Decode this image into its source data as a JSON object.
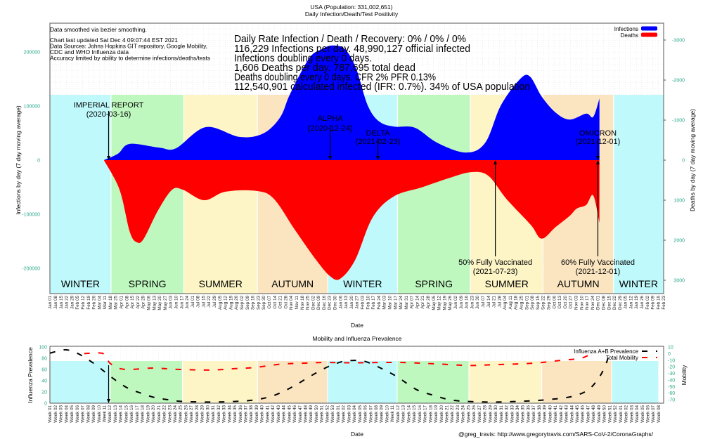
{
  "header": {
    "title": "USA (Population: 331,002,651)",
    "subtitle": "Daily Infection/Death/Test Positivity"
  },
  "notes": [
    "Data smoothed via bezier smoothing.",
    "Chart last updated Sat Dec  4 09:07:44 EST 2021",
    "Data Sources: Johns Hopkins GIT repository, Google Mobility,",
    "CDC and WHO Influenza data",
    "Accuracy limited by ability to determine infections/deaths/tests"
  ],
  "stats": [
    "Daily Rate Infection / Death / Recovery: 0% / 0% / 0%",
    "116,229 Infections per day.  48,990,127 official infected",
    "Infections doubling every 0 days.",
    "1,606 Deaths per day.  787,695 total dead",
    "Deaths doubling every 0 days.  CFR 2%  PFR 0.13%",
    "112,540,901 calculated infected (IFR: 0.7%).  34% of USA population"
  ],
  "credit": "@greg_travis: http://www.gregorytravis.com/SARS-CoV-2/CoronaGraphs/",
  "colors": {
    "infections": "#0000ff",
    "deaths": "#ff0000",
    "winter": "#bff9fb",
    "spring": "#bff8bf",
    "summer": "#fdf5c6",
    "autumn": "#fbe5c1",
    "tick": "#2aa889"
  },
  "chart_data": [
    {
      "type": "area",
      "title": "Daily Infection/Death/Test Positivity",
      "xlabel": "Date",
      "ylabel": "Infections by day (7 day moving average)",
      "y2label": "Deaths by day (7 day moving average)",
      "xlim": [
        "2020-01-01",
        "2022-02-23"
      ],
      "ylim": [
        -250000,
        250000
      ],
      "y2lim": [
        3300,
        -3300
      ],
      "yticks": [
        "200000",
        "100000",
        "0",
        "-100000",
        "-200000"
      ],
      "yticks_values": [
        200000,
        100000,
        0,
        -100000,
        -200000
      ],
      "y2ticks": [
        "-3000",
        "-2000",
        "-1000",
        "0",
        "1000",
        "2000",
        "3000"
      ],
      "y2ticks_values": [
        -3000,
        -2000,
        -1000,
        0,
        1000,
        2000,
        3000
      ],
      "legend": [
        "Infections",
        "Deaths"
      ],
      "legend_position": "top-right",
      "grid": true,
      "xticks": [
        "Jan 01",
        "Jan 08",
        "Jan 15",
        "Jan 22",
        "Jan 29",
        "Feb 05",
        "Feb 12",
        "Feb 19",
        "Feb 26",
        "Mar 04",
        "Mar 11",
        "Mar 18",
        "Mar 25",
        "Apr 01",
        "Apr 08",
        "Apr 15",
        "Apr 22",
        "Apr 29",
        "May 06",
        "May 13",
        "May 20",
        "May 27",
        "Jun 03",
        "Jun 10",
        "Jun 17",
        "Jun 24",
        "Jul 01",
        "Jul 08",
        "Jul 15",
        "Jul 22",
        "Jul 29",
        "Aug 05",
        "Aug 12",
        "Aug 19",
        "Aug 26",
        "Sep 02",
        "Sep 09",
        "Sep 16",
        "Sep 23",
        "Sep 30",
        "Oct 07",
        "Oct 14",
        "Oct 21",
        "Oct 28",
        "Nov 04",
        "Nov 11",
        "Nov 18",
        "Nov 25",
        "Dec 02",
        "Dec 09",
        "Dec 16",
        "Dec 23",
        "Dec 30",
        "Jan 06",
        "Jan 13",
        "Jan 20",
        "Jan 27",
        "Feb 03",
        "Feb 10",
        "Feb 17",
        "Feb 24",
        "Mar 03",
        "Mar 10",
        "Mar 17",
        "Mar 24",
        "Mar 31",
        "Apr 07",
        "Apr 14",
        "Apr 21",
        "Apr 28",
        "May 05",
        "May 12",
        "May 19",
        "May 26",
        "Jun 02",
        "Jun 09",
        "Jun 16",
        "Jun 23",
        "Jun 30",
        "Jul 07",
        "Jul 14",
        "Jul 21",
        "Jul 28",
        "Aug 04",
        "Aug 11",
        "Aug 18",
        "Aug 25",
        "Sep 01",
        "Sep 08",
        "Sep 15",
        "Sep 22",
        "Sep 29",
        "Oct 06",
        "Oct 13",
        "Oct 20",
        "Oct 27",
        "Nov 03",
        "Nov 10",
        "Nov 17",
        "Nov 24",
        "Dec 01",
        "Dec 08",
        "Dec 15",
        "Dec 22",
        "Dec 29",
        "Jan 05",
        "Jan 12",
        "Jan 19",
        "Jan 26",
        "Feb 02",
        "Feb 09",
        "Feb 16",
        "Feb 23"
      ],
      "seasons": [
        {
          "label": "WINTER",
          "start": "2020-01-01",
          "end": "2020-03-19",
          "color": "winter"
        },
        {
          "label": "SPRING",
          "start": "2020-03-19",
          "end": "2020-06-20",
          "color": "spring"
        },
        {
          "label": "SUMMER",
          "start": "2020-06-20",
          "end": "2020-09-22",
          "color": "summer"
        },
        {
          "label": "AUTUMN",
          "start": "2020-09-22",
          "end": "2020-12-21",
          "color": "autumn"
        },
        {
          "label": "WINTER",
          "start": "2020-12-21",
          "end": "2021-03-20",
          "color": "winter"
        },
        {
          "label": "SPRING",
          "start": "2021-03-20",
          "end": "2021-06-21",
          "color": "spring"
        },
        {
          "label": "SUMMER",
          "start": "2021-06-21",
          "end": "2021-09-22",
          "color": "summer"
        },
        {
          "label": "AUTUMN",
          "start": "2021-09-22",
          "end": "2021-12-21",
          "color": "autumn"
        },
        {
          "label": "WINTER",
          "start": "2021-12-21",
          "end": "2022-02-23",
          "color": "winter"
        }
      ],
      "series": [
        {
          "name": "Infections",
          "axis": "y",
          "color": "infections",
          "points": [
            [
              "2020-03-10",
              0
            ],
            [
              "2020-03-28",
              12000
            ],
            [
              "2020-04-12",
              30000
            ],
            [
              "2020-05-20",
              23000
            ],
            [
              "2020-06-10",
              22000
            ],
            [
              "2020-07-18",
              61000
            ],
            [
              "2020-08-30",
              43000
            ],
            [
              "2020-09-29",
              49000
            ],
            [
              "2020-10-21",
              79000
            ],
            [
              "2020-11-03",
              123000
            ],
            [
              "2020-11-27",
              188000
            ],
            [
              "2020-12-13",
              205000
            ],
            [
              "2020-12-27",
              212000
            ],
            [
              "2021-01-12",
              205000
            ],
            [
              "2021-01-26",
              170000
            ],
            [
              "2021-02-10",
              101000
            ],
            [
              "2021-02-25",
              71000
            ],
            [
              "2021-03-16",
              62000
            ],
            [
              "2021-04-11",
              60000
            ],
            [
              "2021-05-10",
              32000
            ],
            [
              "2021-06-15",
              14000
            ],
            [
              "2021-07-10",
              32000
            ],
            [
              "2021-07-30",
              101000
            ],
            [
              "2021-08-23",
              149000
            ],
            [
              "2021-09-05",
              155000
            ],
            [
              "2021-09-20",
              118000
            ],
            [
              "2021-10-08",
              88000
            ],
            [
              "2021-10-26",
              75000
            ],
            [
              "2021-11-16",
              86000
            ],
            [
              "2021-11-25",
              80000
            ],
            [
              "2021-12-03",
              114000
            ]
          ]
        },
        {
          "name": "Deaths",
          "axis": "y2",
          "color": "deaths",
          "points": [
            [
              "2020-03-10",
              0
            ],
            [
              "2020-03-30",
              740
            ],
            [
              "2020-04-12",
              1790
            ],
            [
              "2020-04-21",
              2050
            ],
            [
              "2020-04-30",
              1960
            ],
            [
              "2020-05-18",
              1260
            ],
            [
              "2020-06-05",
              740
            ],
            [
              "2020-06-19",
              740
            ],
            [
              "2020-07-16",
              1000
            ],
            [
              "2020-08-12",
              790
            ],
            [
              "2020-09-21",
              770
            ],
            [
              "2020-10-13",
              965
            ],
            [
              "2020-11-09",
              1740
            ],
            [
              "2020-12-06",
              2490
            ],
            [
              "2020-12-24",
              2900
            ],
            [
              "2021-01-06",
              2960
            ],
            [
              "2021-01-25",
              2490
            ],
            [
              "2021-02-16",
              1440
            ],
            [
              "2021-03-15",
              910
            ],
            [
              "2021-04-20",
              680
            ],
            [
              "2021-05-26",
              440
            ],
            [
              "2021-06-22",
              300
            ],
            [
              "2021-07-14",
              390
            ],
            [
              "2021-08-06",
              965
            ],
            [
              "2021-09-06",
              1610
            ],
            [
              "2021-09-20",
              1960
            ],
            [
              "2021-10-08",
              1670
            ],
            [
              "2021-10-26",
              1390
            ],
            [
              "2021-11-04",
              1210
            ],
            [
              "2021-11-16",
              1120
            ],
            [
              "2021-11-25",
              880
            ],
            [
              "2021-12-03",
              1560
            ]
          ]
        }
      ],
      "annotations": [
        {
          "label": "IMPERIAL REPORT",
          "date_label": "(2020-03-16)",
          "date": "2020-03-16",
          "direction": "down"
        },
        {
          "label": "ALPHA",
          "date_label": "(2020-12-24)",
          "date": "2020-12-24",
          "direction": "down"
        },
        {
          "label": "DELTA",
          "date_label": "(2021-02-23)",
          "date": "2021-02-23",
          "direction": "down"
        },
        {
          "label": "OMICRON",
          "date_label": "(2021-12-01)",
          "date": "2021-12-01",
          "direction": "down"
        },
        {
          "label": "50% Fully Vaccinated",
          "date_label": "(2021-07-23)",
          "date": "2021-07-23",
          "direction": "up"
        },
        {
          "label": "60% Fully Vaccinated",
          "date_label": "(2021-12-01)",
          "date": "2021-12-01",
          "direction": "up"
        }
      ]
    },
    {
      "type": "line",
      "title": "Mobility and Influenza Prevalence",
      "xlabel": "Date",
      "ylabel": "Influenza Prevalence",
      "y2label": "Mobility",
      "ylim": [
        0,
        100
      ],
      "y2lim": [
        -72,
        10
      ],
      "yticks": [
        "100",
        "80",
        "60",
        "40",
        "20",
        "0"
      ],
      "yticks_values": [
        100,
        80,
        60,
        40,
        20,
        0
      ],
      "y2ticks": [
        "10",
        "0",
        "-10",
        "-20",
        "-30",
        "-40",
        "-50",
        "-60",
        "-70"
      ],
      "y2ticks_values": [
        10,
        0,
        -10,
        -20,
        -30,
        -40,
        -50,
        -60,
        -70
      ],
      "legend": [
        "Influenza A+B Prevalence",
        "Total Mobility"
      ],
      "legend_position": "top-right",
      "x_unit": "weeks since 2020 Week 01",
      "xticks_years": [
        {
          "weeks": 53
        },
        {
          "weeks": 52
        },
        {
          "weeks": 8
        }
      ],
      "xtick_prefix": "Week ",
      "season_week_bounds": [
        0,
        11.1,
        24.4,
        38.2,
        51.1,
        63.9,
        77.1,
        90.5,
        103.4,
        112
      ],
      "series": [
        {
          "name": "Influenza A+B Prevalence",
          "axis": "y",
          "color": "#000000",
          "points": [
            [
              0,
              89
            ],
            [
              2.8,
              95
            ],
            [
              5,
              89
            ],
            [
              7.6,
              74
            ],
            [
              10.2,
              55
            ],
            [
              11.5,
              45
            ],
            [
              14.1,
              28
            ],
            [
              16.7,
              18
            ],
            [
              19.3,
              10
            ],
            [
              21.9,
              6
            ],
            [
              24.5,
              3
            ],
            [
              29.6,
              2
            ],
            [
              33.9,
              3
            ],
            [
              37.8,
              6
            ],
            [
              41.3,
              14
            ],
            [
              44.8,
              30
            ],
            [
              48.1,
              49
            ],
            [
              51.2,
              65
            ],
            [
              53.8,
              74
            ],
            [
              55.5,
              76
            ],
            [
              58.1,
              74
            ],
            [
              62,
              57
            ],
            [
              64.2,
              45
            ],
            [
              67.5,
              24
            ],
            [
              70.6,
              14
            ],
            [
              73.6,
              6
            ],
            [
              77.1,
              3
            ],
            [
              81.4,
              2
            ],
            [
              85.6,
              3
            ],
            [
              90,
              5
            ],
            [
              94.3,
              9
            ],
            [
              96.9,
              14
            ],
            [
              99.1,
              24
            ],
            [
              100.8,
              42
            ],
            [
              102.1,
              64
            ],
            [
              103,
              89
            ]
          ]
        },
        {
          "name": "Total Mobility",
          "axis": "y2",
          "color": "#ff0000",
          "points": [
            [
              6.3,
              0
            ],
            [
              9.8,
              0
            ],
            [
              11.1,
              -15
            ],
            [
              13.7,
              -24
            ],
            [
              18.9,
              -22
            ],
            [
              23.5,
              -24
            ],
            [
              29.6,
              -25
            ],
            [
              33.9,
              -23
            ],
            [
              37.8,
              -21
            ],
            [
              42.6,
              -16
            ],
            [
              46.8,
              -14.5
            ],
            [
              50.7,
              -13.5
            ],
            [
              55.5,
              -14
            ],
            [
              64.2,
              -13.5
            ],
            [
              70.6,
              -15.5
            ],
            [
              77.1,
              -18
            ],
            [
              81.4,
              -17
            ],
            [
              89.1,
              -14.5
            ],
            [
              94.3,
              -10
            ],
            [
              97.8,
              -7
            ],
            [
              99.9,
              1.5
            ]
          ]
        }
      ],
      "annotations": [
        {
          "date": "2020-03-16",
          "week": 10.6,
          "direction": "down"
        }
      ]
    }
  ]
}
